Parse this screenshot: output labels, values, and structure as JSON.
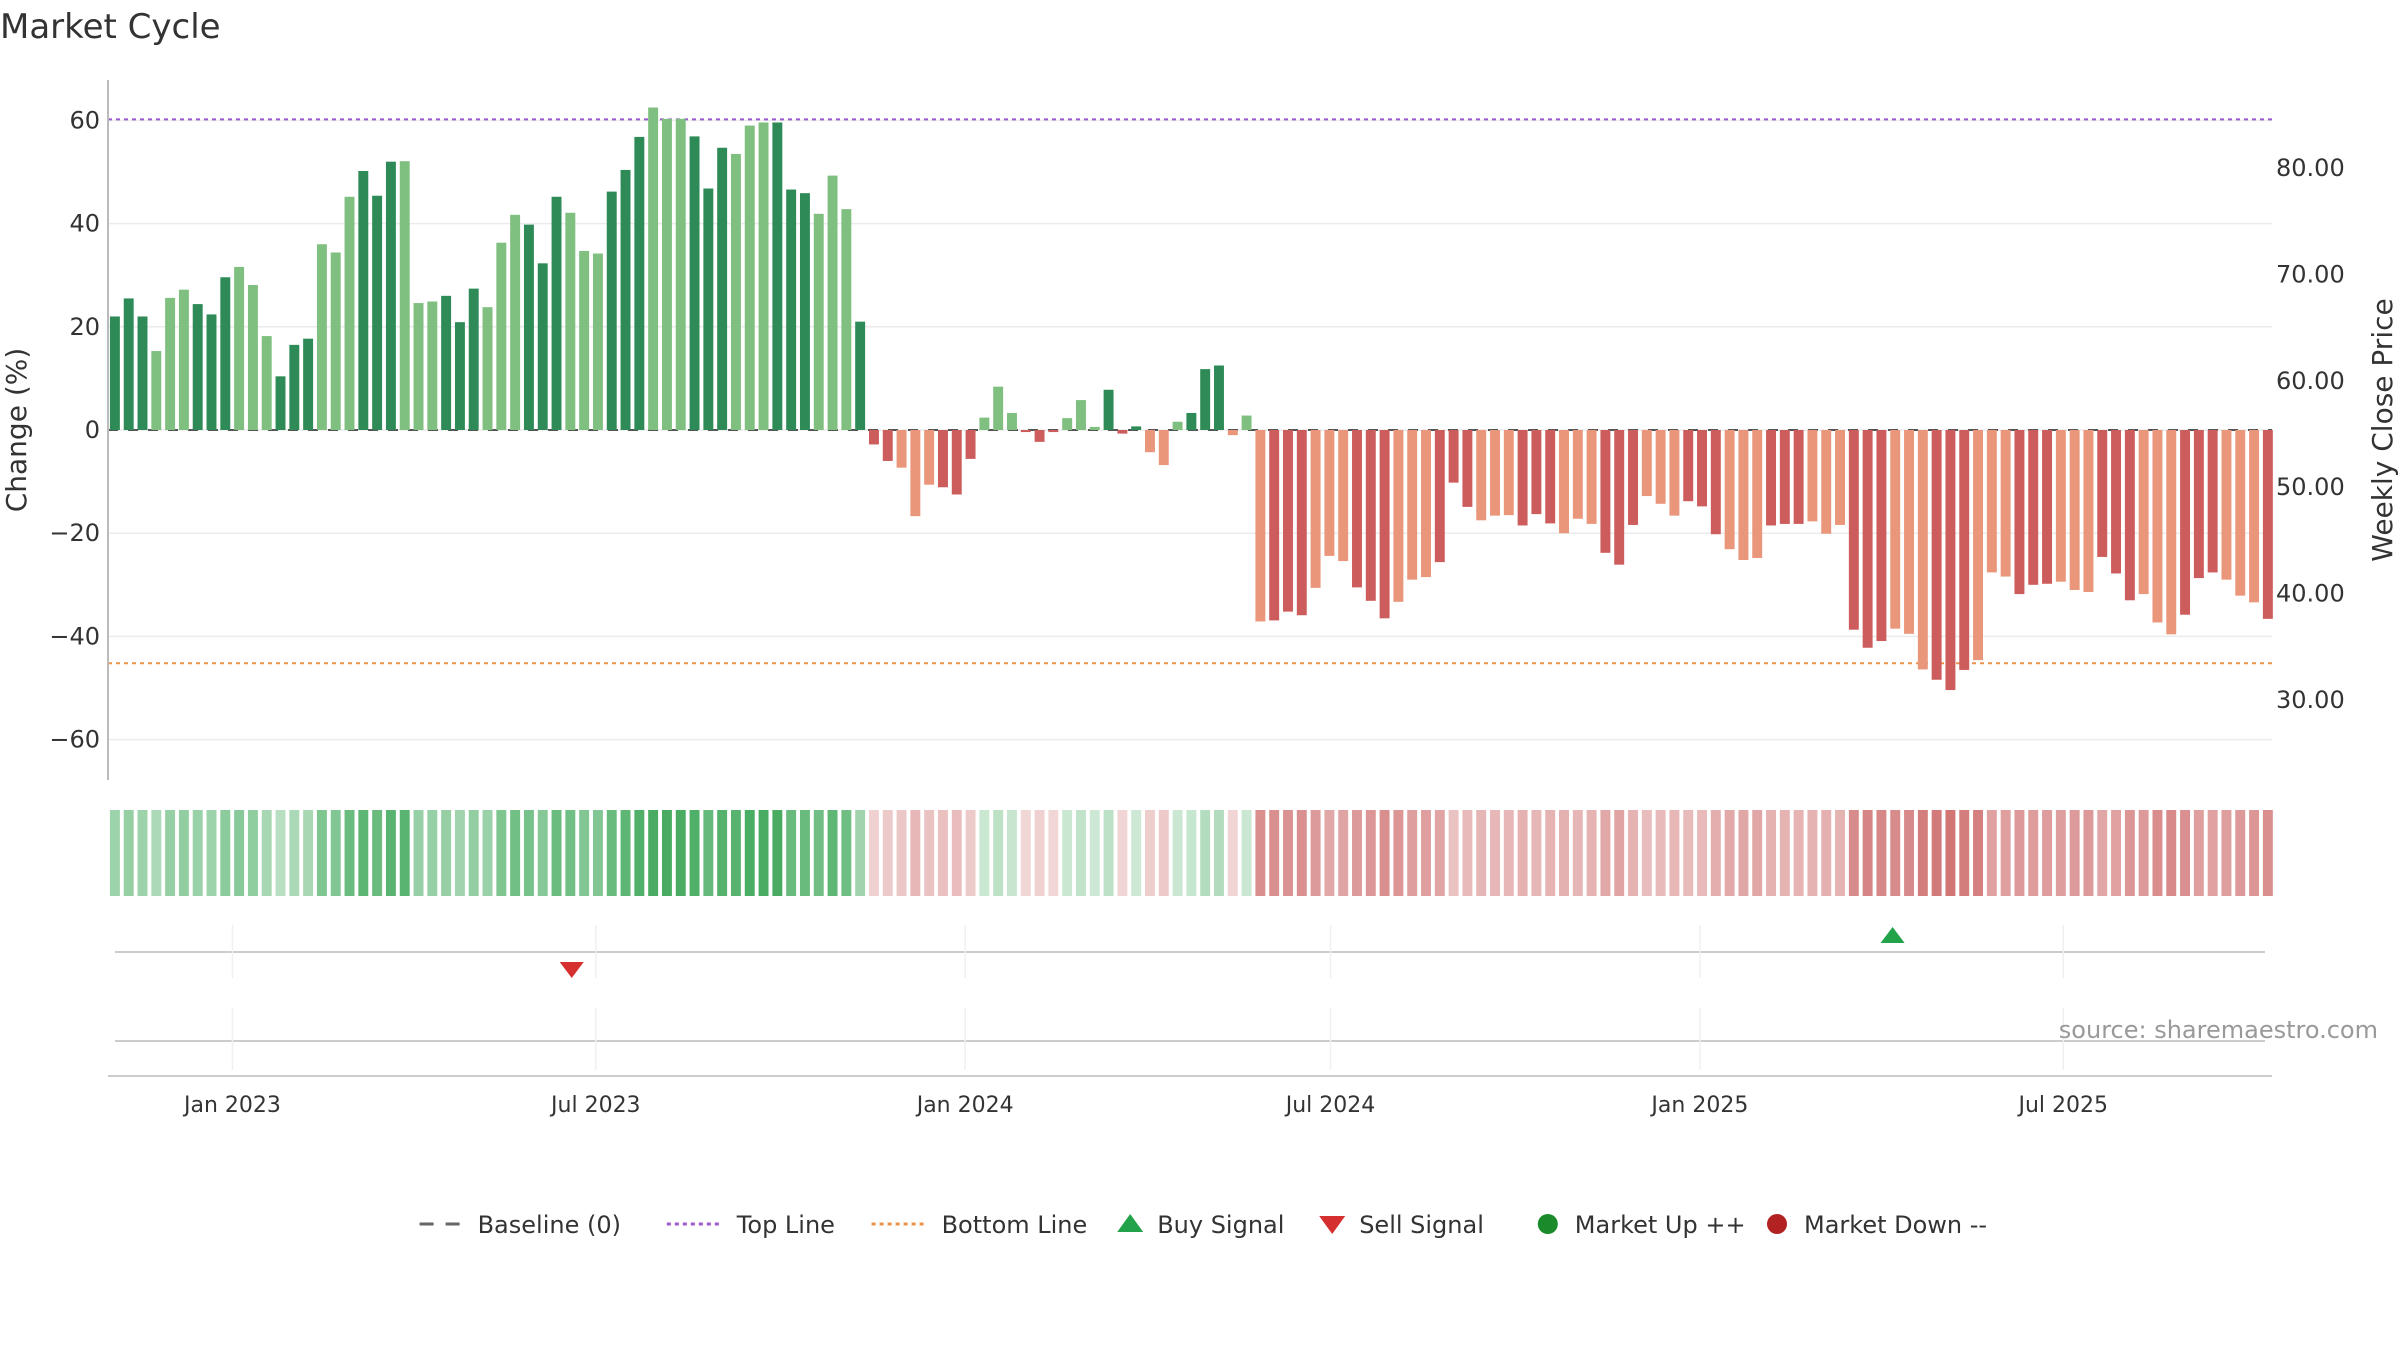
{
  "chart_data": {
    "type": "bar",
    "title": "Market Cycle",
    "ylabel": "Change (%)",
    "y2label": "Weekly Close Price",
    "ylim": [
      -68,
      68
    ],
    "y2lim": [
      23.3,
      85.8
    ],
    "yticks": [
      -60,
      -40,
      -20,
      0,
      20,
      40,
      60
    ],
    "yticks_labels": [
      "−60",
      "−40",
      "−20",
      "0",
      "20",
      "40",
      "60"
    ],
    "y2ticks": [
      30,
      40,
      50,
      60,
      70,
      80
    ],
    "y2ticks_labels": [
      "30.00",
      "40.00",
      "50.00",
      "60.00",
      "70.00",
      "80.00"
    ],
    "x_start": "2022-10-31",
    "x_end": "2025-10-13",
    "bar_dates_start": "2022-11-01",
    "bar_interval_days": 7,
    "xticks": [
      {
        "date": "2023-01-01",
        "label": "Jan 2023"
      },
      {
        "date": "2023-07-01",
        "label": "Jul 2023"
      },
      {
        "date": "2024-01-01",
        "label": "Jan 2024"
      },
      {
        "date": "2024-07-01",
        "label": "Jul 2024"
      },
      {
        "date": "2025-01-01",
        "label": "Jan 2025"
      },
      {
        "date": "2025-07-01",
        "label": "Jul 2025"
      }
    ],
    "reference_lines": [
      {
        "name": "Baseline (0)",
        "y": 0,
        "style": "dashed",
        "color": "#555555"
      },
      {
        "name": "Top Line",
        "y": 60.2,
        "style": "dotted",
        "color": "#9b59d0"
      },
      {
        "name": "Bottom Line",
        "y": -45.2,
        "style": "dotted",
        "color": "#e8934a"
      }
    ],
    "values": [
      22,
      25.5,
      22,
      15.3,
      25.6,
      27.2,
      24.4,
      22.4,
      29.6,
      31.6,
      28.1,
      18.2,
      10.4,
      16.5,
      17.7,
      36,
      34.4,
      45.2,
      50.2,
      45.4,
      52,
      52.1,
      24.6,
      24.9,
      26,
      20.9,
      27.4,
      23.8,
      36.3,
      41.7,
      39.8,
      32.3,
      45.2,
      42.1,
      34.7,
      34.2,
      46.2,
      50.4,
      56.8,
      62.5,
      60.3,
      60.3,
      56.9,
      46.8,
      54.7,
      53.5,
      59,
      59.6,
      59.6,
      46.6,
      45.9,
      41.9,
      49.3,
      42.8,
      21,
      -2.8,
      -6,
      -7.3,
      -16.7,
      -10.6,
      -11.1,
      -12.5,
      -5.6,
      2.4,
      8.4,
      3.3,
      -0.4,
      -2.3,
      -0.4,
      2.3,
      5.8,
      0.6,
      7.8,
      -0.7,
      0.7,
      -4.3,
      -6.8,
      1.6,
      3.3,
      11.8,
      12.5,
      -1,
      2.8,
      -37.1,
      -36.9,
      -35.2,
      -35.9,
      -30.6,
      -24.4,
      -25.4,
      -30.5,
      -33.1,
      -36.5,
      -33.3,
      -29,
      -28.5,
      -25.6,
      -10.2,
      -14.9,
      -17.5,
      -16.6,
      -16.5,
      -18.5,
      -16.3,
      -18.1,
      -20,
      -17.2,
      -18.2,
      -23.8,
      -26.1,
      -18.4,
      -12.8,
      -14.3,
      -16.6,
      -13.8,
      -14.8,
      -20.2,
      -23.1,
      -25.2,
      -24.8,
      -18.5,
      -18.2,
      -18.2,
      -17.7,
      -20.1,
      -18.4,
      -38.7,
      -42.2,
      -40.9,
      -38.5,
      -39.5,
      -46.4,
      -48.4,
      -50.4,
      -46.5,
      -44.6,
      -27.6,
      -28.4,
      -31.8,
      -30,
      -29.8,
      -29.4,
      -31,
      -31.4,
      -24.6,
      -27.8,
      -33,
      -31.8,
      -37.3,
      -39.6,
      -35.8,
      -28.7,
      -27.6,
      -29,
      -32.1,
      -33.4,
      -36.6
    ],
    "series": [
      {
        "name": "Buy Signal",
        "type": "marker",
        "date": "2025-04-07"
      },
      {
        "name": "Sell Signal",
        "type": "marker",
        "date": "2023-06-19"
      }
    ],
    "legend": {
      "placement": "bottom",
      "items": [
        {
          "label": "Baseline (0)",
          "symbol": "dash",
          "color": "#666666"
        },
        {
          "label": "Top Line",
          "symbol": "dotted",
          "color": "#9b59d0"
        },
        {
          "label": "Bottom Line",
          "symbol": "dotted",
          "color": "#e8934a"
        },
        {
          "label": "Buy Signal",
          "symbol": "triangle-up",
          "color": "#22a34a"
        },
        {
          "label": "Sell Signal",
          "symbol": "triangle-down",
          "color": "#d62f2f"
        },
        {
          "label": "Market Up ++",
          "symbol": "circle",
          "color": "#1a8a2a"
        },
        {
          "label": "Market Down --",
          "symbol": "circle",
          "color": "#b22222"
        }
      ]
    },
    "colors": {
      "up_strong": "#2e8b57",
      "up_light": "#7fbf7f",
      "down_strong": "#cd5c5c",
      "down_light": "#e9967a",
      "band_up": "#3fa85a",
      "band_down": "#c85a5a"
    },
    "grid": true
  },
  "source": "source: sharemaestro.com"
}
